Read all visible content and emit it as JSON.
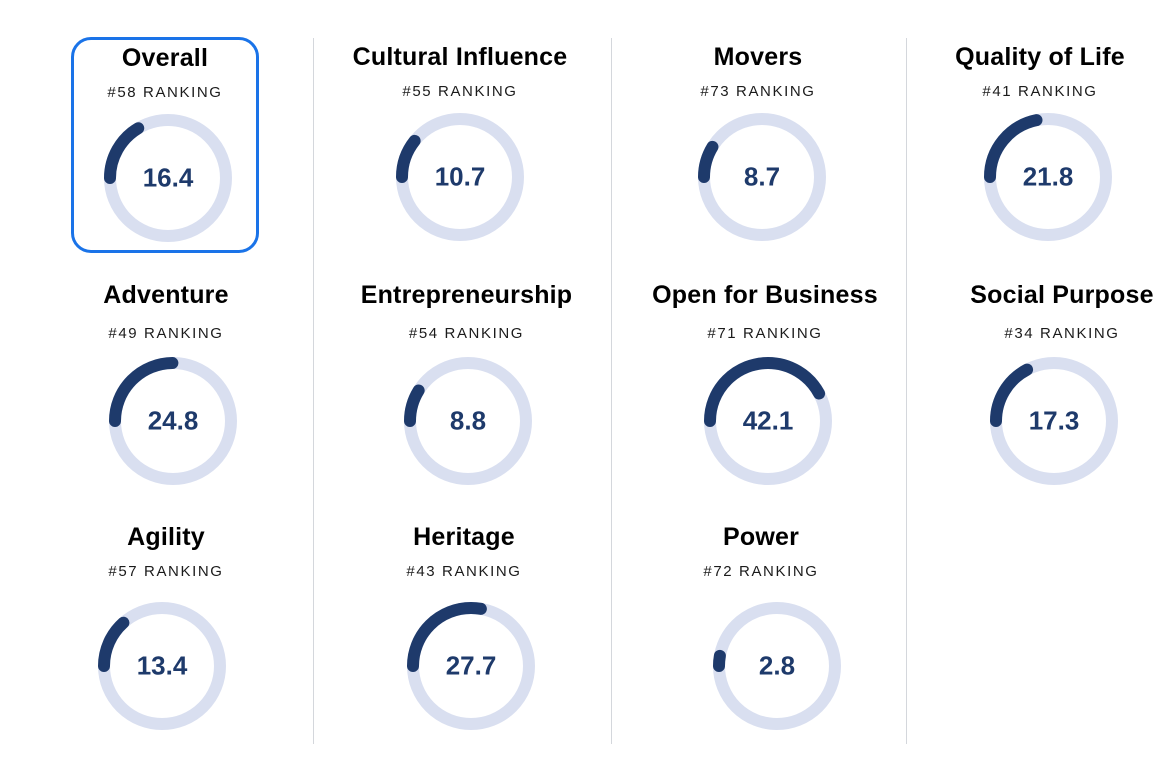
{
  "colors": {
    "ring_track": "#d9dff0",
    "ring_fill": "#1e3a6b",
    "selected_border": "#1a73e8",
    "value_text": "#1e3a6b"
  },
  "ring_scale_max": 100,
  "cards": [
    {
      "title": "Overall",
      "rank": "#58 RANKING",
      "value": "16.4",
      "selected": true
    },
    {
      "title": "Adventure",
      "rank": "#49 RANKING",
      "value": "24.8",
      "selected": false
    },
    {
      "title": "Agility",
      "rank": "#57 RANKING",
      "value": "13.4",
      "selected": false
    },
    {
      "title": "Cultural Influence",
      "rank": "#55 RANKING",
      "value": "10.7",
      "selected": false
    },
    {
      "title": "Entrepreneurship",
      "rank": "#54 RANKING",
      "value": "8.8",
      "selected": false
    },
    {
      "title": "Heritage",
      "rank": "#43 RANKING",
      "value": "27.7",
      "selected": false
    },
    {
      "title": "Movers",
      "rank": "#73 RANKING",
      "value": "8.7",
      "selected": false
    },
    {
      "title": "Open for Business",
      "rank": "#71 RANKING",
      "value": "42.1",
      "selected": false
    },
    {
      "title": "Power",
      "rank": "#72 RANKING",
      "value": "2.8",
      "selected": false
    },
    {
      "title": "Quality of Life",
      "rank": "#41 RANKING",
      "value": "21.8",
      "selected": false
    },
    {
      "title": "Social Purpose",
      "rank": "#34 RANKING",
      "value": "17.3",
      "selected": false
    }
  ]
}
